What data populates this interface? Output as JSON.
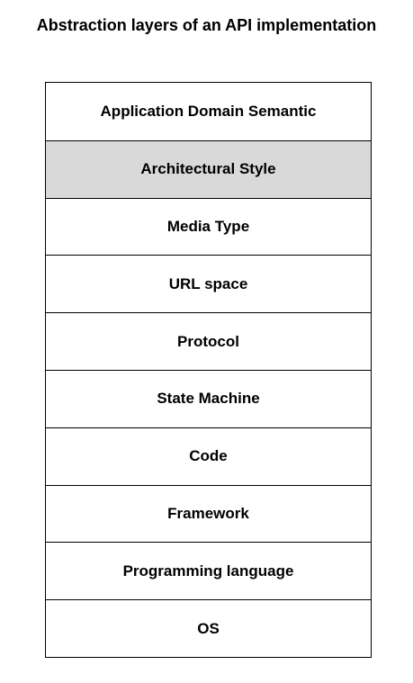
{
  "title": "Abstraction layers of an API implementation",
  "colors": {
    "highlight": "#d9d9d9",
    "border": "#000000"
  },
  "layers": [
    {
      "label": "Application Domain Semantic",
      "highlighted": false
    },
    {
      "label": "Architectural Style",
      "highlighted": true
    },
    {
      "label": "Media Type",
      "highlighted": false
    },
    {
      "label": "URL space",
      "highlighted": false
    },
    {
      "label": "Protocol",
      "highlighted": false
    },
    {
      "label": "State Machine",
      "highlighted": false
    },
    {
      "label": "Code",
      "highlighted": false
    },
    {
      "label": "Framework",
      "highlighted": false
    },
    {
      "label": "Programming language",
      "highlighted": false
    },
    {
      "label": "OS",
      "highlighted": false
    }
  ]
}
